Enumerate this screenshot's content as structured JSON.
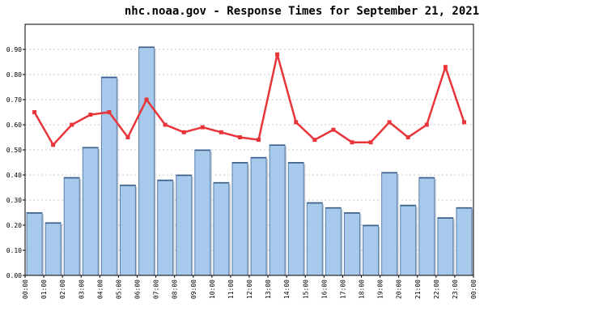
{
  "chart_data": {
    "type": "bar",
    "title": "nhc.noaa.gov - Response Times for September 21, 2021",
    "xlabel": "",
    "ylabel": "",
    "x_ticks": [
      "00:00",
      "01:00",
      "02:00",
      "03:00",
      "04:00",
      "05:00",
      "06:00",
      "07:00",
      "08:00",
      "09:00",
      "10:00",
      "11:00",
      "12:00",
      "13:00",
      "14:00",
      "15:00",
      "16:00",
      "17:00",
      "18:00",
      "19:00",
      "20:00",
      "21:00",
      "22:00",
      "23:00",
      "00:00"
    ],
    "y_ticks": [
      "0.00",
      "0.10",
      "0.20",
      "0.30",
      "0.40",
      "0.50",
      "0.60",
      "0.70",
      "0.80",
      "0.90"
    ],
    "ylim": [
      0,
      1.0
    ],
    "grid": true,
    "series": [
      {
        "type": "bar",
        "values": [
          0.25,
          0.21,
          0.39,
          0.51,
          0.79,
          0.36,
          0.91,
          0.38,
          0.4,
          0.5,
          0.37,
          0.45,
          0.47,
          0.52,
          0.45,
          0.29,
          0.27,
          0.25,
          0.2,
          0.41,
          0.28,
          0.39,
          0.23,
          0.27
        ],
        "color": "#a7c9ec",
        "edge_color": "#5a7fa8"
      },
      {
        "type": "line",
        "values": [
          0.65,
          0.52,
          0.6,
          0.64,
          0.65,
          0.55,
          0.7,
          0.6,
          0.57,
          0.59,
          0.57,
          0.55,
          0.54,
          0.88,
          0.61,
          0.54,
          0.58,
          0.53,
          0.53,
          0.61,
          0.55,
          0.6,
          0.83,
          0.61
        ],
        "color": "#e8353a"
      }
    ]
  }
}
